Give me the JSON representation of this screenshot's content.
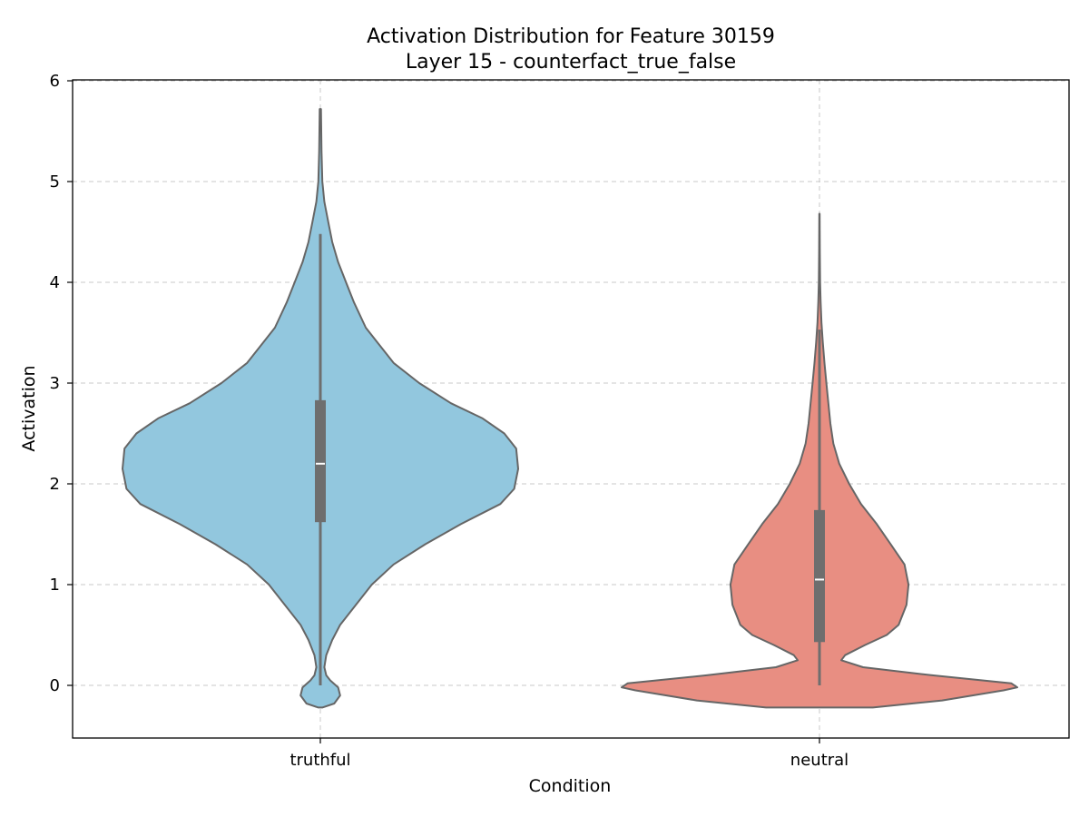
{
  "chart_data": {
    "type": "violin",
    "title": "Activation Distribution for Feature 30159",
    "subtitle": "Layer 15 - counterfact_true_false",
    "xlabel": "Condition",
    "ylabel": "Activation",
    "categories": [
      "truthful",
      "neutral"
    ],
    "ylim": [
      -0.52,
      6.0
    ],
    "yticks": [
      0,
      1,
      2,
      3,
      4,
      5,
      6
    ],
    "grid": true,
    "colors": {
      "truthful": "#92c7de",
      "neutral": "#e88e82",
      "outline": "#666666",
      "box": "#6e6e6e",
      "median": "#ffffff"
    },
    "series": [
      {
        "category": "truthful",
        "whisker": [
          0.0,
          4.48
        ],
        "q1": 1.62,
        "median": 2.2,
        "q3": 2.83,
        "extent": [
          -0.22,
          5.72
        ],
        "density": [
          [
            -0.22,
            0.01
          ],
          [
            -0.18,
            0.07
          ],
          [
            -0.1,
            0.1
          ],
          [
            -0.02,
            0.09
          ],
          [
            0.05,
            0.05
          ],
          [
            0.1,
            0.03
          ],
          [
            0.18,
            0.02
          ],
          [
            0.3,
            0.03
          ],
          [
            0.45,
            0.06
          ],
          [
            0.6,
            0.1
          ],
          [
            0.8,
            0.18
          ],
          [
            1.0,
            0.26
          ],
          [
            1.2,
            0.37
          ],
          [
            1.4,
            0.53
          ],
          [
            1.6,
            0.71
          ],
          [
            1.8,
            0.91
          ],
          [
            1.95,
            0.98
          ],
          [
            2.15,
            1.0
          ],
          [
            2.35,
            0.99
          ],
          [
            2.5,
            0.93
          ],
          [
            2.65,
            0.82
          ],
          [
            2.8,
            0.66
          ],
          [
            3.0,
            0.5
          ],
          [
            3.2,
            0.37
          ],
          [
            3.4,
            0.29
          ],
          [
            3.55,
            0.23
          ],
          [
            3.8,
            0.17
          ],
          [
            4.0,
            0.13
          ],
          [
            4.2,
            0.09
          ],
          [
            4.4,
            0.06
          ],
          [
            4.6,
            0.04
          ],
          [
            4.8,
            0.02
          ],
          [
            5.0,
            0.01
          ],
          [
            5.3,
            0.006
          ],
          [
            5.72,
            0.003
          ]
        ]
      },
      {
        "category": "neutral",
        "whisker": [
          0.0,
          3.53
        ],
        "q1": 0.43,
        "median": 1.05,
        "q3": 1.74,
        "extent": [
          -0.22,
          4.68
        ],
        "density": [
          [
            -0.22,
            0.27
          ],
          [
            -0.15,
            0.62
          ],
          [
            -0.05,
            0.93
          ],
          [
            -0.02,
            1.0
          ],
          [
            0.02,
            0.97
          ],
          [
            0.1,
            0.57
          ],
          [
            0.18,
            0.22
          ],
          [
            0.25,
            0.11
          ],
          [
            0.3,
            0.13
          ],
          [
            0.4,
            0.23
          ],
          [
            0.5,
            0.34
          ],
          [
            0.6,
            0.4
          ],
          [
            0.8,
            0.44
          ],
          [
            1.0,
            0.45
          ],
          [
            1.2,
            0.43
          ],
          [
            1.4,
            0.36
          ],
          [
            1.6,
            0.29
          ],
          [
            1.8,
            0.21
          ],
          [
            2.0,
            0.15
          ],
          [
            2.2,
            0.1
          ],
          [
            2.4,
            0.07
          ],
          [
            2.6,
            0.055
          ],
          [
            2.8,
            0.045
          ],
          [
            3.0,
            0.035
          ],
          [
            3.2,
            0.025
          ],
          [
            3.4,
            0.017
          ],
          [
            3.6,
            0.01
          ],
          [
            3.8,
            0.006
          ],
          [
            4.0,
            0.003
          ],
          [
            4.3,
            0.002
          ],
          [
            4.68,
            0.001
          ]
        ]
      }
    ]
  }
}
